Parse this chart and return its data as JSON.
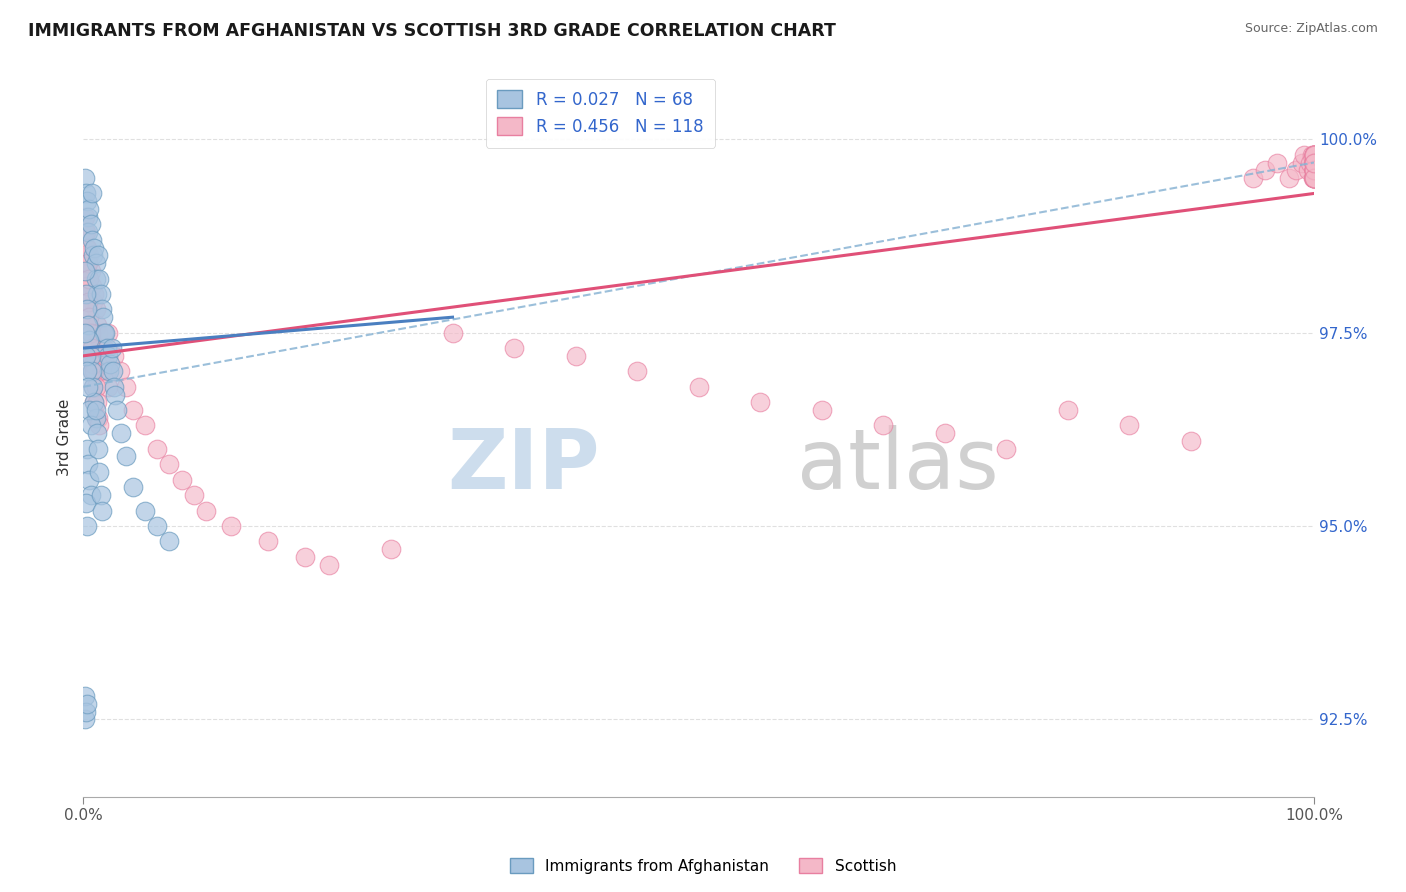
{
  "title": "IMMIGRANTS FROM AFGHANISTAN VS SCOTTISH 3RD GRADE CORRELATION CHART",
  "source": "Source: ZipAtlas.com",
  "ylabel": "3rd Grade",
  "ytick_labels": [
    "92.5%",
    "95.0%",
    "97.5%",
    "100.0%"
  ],
  "yticks": [
    92.5,
    95.0,
    97.5,
    100.0
  ],
  "legend_blue_r": "R = 0.027",
  "legend_blue_n": "N = 68",
  "legend_pink_r": "R = 0.456",
  "legend_pink_n": "N = 118",
  "legend_label_blue": "Immigrants from Afghanistan",
  "legend_label_pink": "Scottish",
  "blue_color": "#a8c4e0",
  "blue_edge": "#6a9bbf",
  "pink_color": "#f4b8c8",
  "pink_edge": "#e87fa0",
  "blue_line_color": "#4a7fc0",
  "pink_line_color": "#e05078",
  "dash_line_color": "#8ab4d4",
  "grid_color": "#cccccc",
  "watermark_color": "#dce8f0",
  "xlim": [
    0.0,
    1.0
  ],
  "ylim": [
    91.5,
    100.8
  ],
  "blue_scatter_x": [
    0.001,
    0.002,
    0.003,
    0.004,
    0.004,
    0.005,
    0.006,
    0.007,
    0.007,
    0.008,
    0.009,
    0.01,
    0.01,
    0.011,
    0.012,
    0.013,
    0.014,
    0.015,
    0.016,
    0.017,
    0.018,
    0.019,
    0.02,
    0.021,
    0.022,
    0.023,
    0.024,
    0.025,
    0.026,
    0.027,
    0.001,
    0.002,
    0.003,
    0.004,
    0.005,
    0.006,
    0.007,
    0.008,
    0.009,
    0.01,
    0.001,
    0.002,
    0.003,
    0.004,
    0.005,
    0.006,
    0.003,
    0.004,
    0.005,
    0.006,
    0.002,
    0.003,
    0.031,
    0.035,
    0.04,
    0.05,
    0.06,
    0.07,
    0.01,
    0.011,
    0.012,
    0.013,
    0.014,
    0.015,
    0.001,
    0.001,
    0.002,
    0.003
  ],
  "blue_scatter_y": [
    99.5,
    99.3,
    99.2,
    99.0,
    98.8,
    99.1,
    98.9,
    98.7,
    99.3,
    98.5,
    98.6,
    98.4,
    98.2,
    98.0,
    98.5,
    98.2,
    98.0,
    97.8,
    97.7,
    97.5,
    97.5,
    97.3,
    97.2,
    97.0,
    97.1,
    97.3,
    97.0,
    96.8,
    96.7,
    96.5,
    98.3,
    98.0,
    97.8,
    97.6,
    97.4,
    97.2,
    97.0,
    96.8,
    96.6,
    96.4,
    97.5,
    97.2,
    97.0,
    96.8,
    96.5,
    96.3,
    96.0,
    95.8,
    95.6,
    95.4,
    95.3,
    95.0,
    96.2,
    95.9,
    95.5,
    95.2,
    95.0,
    94.8,
    96.5,
    96.2,
    96.0,
    95.7,
    95.4,
    95.2,
    92.8,
    92.5,
    92.6,
    92.7
  ],
  "pink_scatter_x": [
    0.001,
    0.002,
    0.003,
    0.004,
    0.005,
    0.006,
    0.007,
    0.008,
    0.009,
    0.01,
    0.011,
    0.012,
    0.013,
    0.014,
    0.015,
    0.016,
    0.017,
    0.018,
    0.019,
    0.02,
    0.001,
    0.002,
    0.003,
    0.004,
    0.005,
    0.006,
    0.007,
    0.008,
    0.009,
    0.01,
    0.02,
    0.025,
    0.03,
    0.035,
    0.04,
    0.05,
    0.06,
    0.07,
    0.08,
    0.09,
    0.1,
    0.12,
    0.15,
    0.18,
    0.2,
    0.25,
    0.001,
    0.002,
    0.003,
    0.004,
    0.005,
    0.006,
    0.007,
    0.008,
    0.009,
    0.01,
    0.011,
    0.012,
    0.013,
    0.95,
    0.96,
    0.97,
    0.98,
    0.985,
    0.99,
    0.992,
    0.995,
    0.997,
    0.998,
    0.999,
    1.0,
    1.0,
    1.0,
    1.0,
    1.0,
    1.0,
    1.0,
    1.0,
    1.0,
    1.0,
    1.0,
    1.0,
    1.0,
    1.0,
    1.0,
    1.0,
    1.0,
    1.0,
    1.0,
    1.0,
    1.0,
    1.0,
    1.0,
    1.0,
    1.0,
    1.0,
    1.0,
    1.0,
    1.0,
    0.3,
    0.35,
    0.4,
    0.45,
    0.5,
    0.55,
    0.6,
    0.65,
    0.7,
    0.75,
    0.8,
    0.85,
    0.9,
    0.001,
    0.002,
    0.003,
    0.004,
    0.005
  ],
  "pink_scatter_y": [
    98.8,
    98.6,
    98.4,
    98.2,
    98.5,
    98.3,
    98.1,
    97.9,
    98.0,
    97.8,
    97.6,
    97.5,
    97.3,
    97.2,
    97.0,
    97.5,
    97.3,
    97.1,
    97.0,
    96.8,
    98.2,
    98.0,
    97.8,
    97.6,
    97.4,
    97.2,
    97.0,
    96.8,
    96.6,
    96.4,
    97.5,
    97.2,
    97.0,
    96.8,
    96.5,
    96.3,
    96.0,
    95.8,
    95.6,
    95.4,
    95.2,
    95.0,
    94.8,
    94.6,
    94.5,
    94.7,
    98.5,
    98.3,
    98.1,
    97.9,
    97.7,
    97.5,
    97.3,
    97.1,
    97.0,
    96.8,
    96.6,
    96.4,
    96.3,
    99.5,
    99.6,
    99.7,
    99.5,
    99.6,
    99.7,
    99.8,
    99.6,
    99.7,
    99.8,
    99.5,
    99.8,
    99.7,
    99.6,
    99.5,
    99.7,
    99.8,
    99.6,
    99.5,
    99.7,
    99.8,
    99.6,
    99.5,
    99.7,
    99.8,
    99.6,
    99.5,
    99.7,
    99.8,
    99.6,
    99.5,
    99.7,
    99.8,
    99.6,
    99.5,
    99.7,
    99.8,
    99.6,
    99.5,
    99.7,
    97.5,
    97.3,
    97.2,
    97.0,
    96.8,
    96.6,
    96.5,
    96.3,
    96.2,
    96.0,
    96.5,
    96.3,
    96.1,
    99.0,
    98.8,
    98.6,
    98.4,
    98.2
  ],
  "blue_line_x0": 0.0,
  "blue_line_x1": 0.3,
  "blue_line_y0": 97.3,
  "blue_line_y1": 97.7,
  "pink_line_x0": 0.0,
  "pink_line_x1": 1.0,
  "pink_line_y0": 97.2,
  "pink_line_y1": 99.3,
  "dash_line_x0": 0.0,
  "dash_line_x1": 1.0,
  "dash_line_y0": 96.8,
  "dash_line_y1": 99.7
}
